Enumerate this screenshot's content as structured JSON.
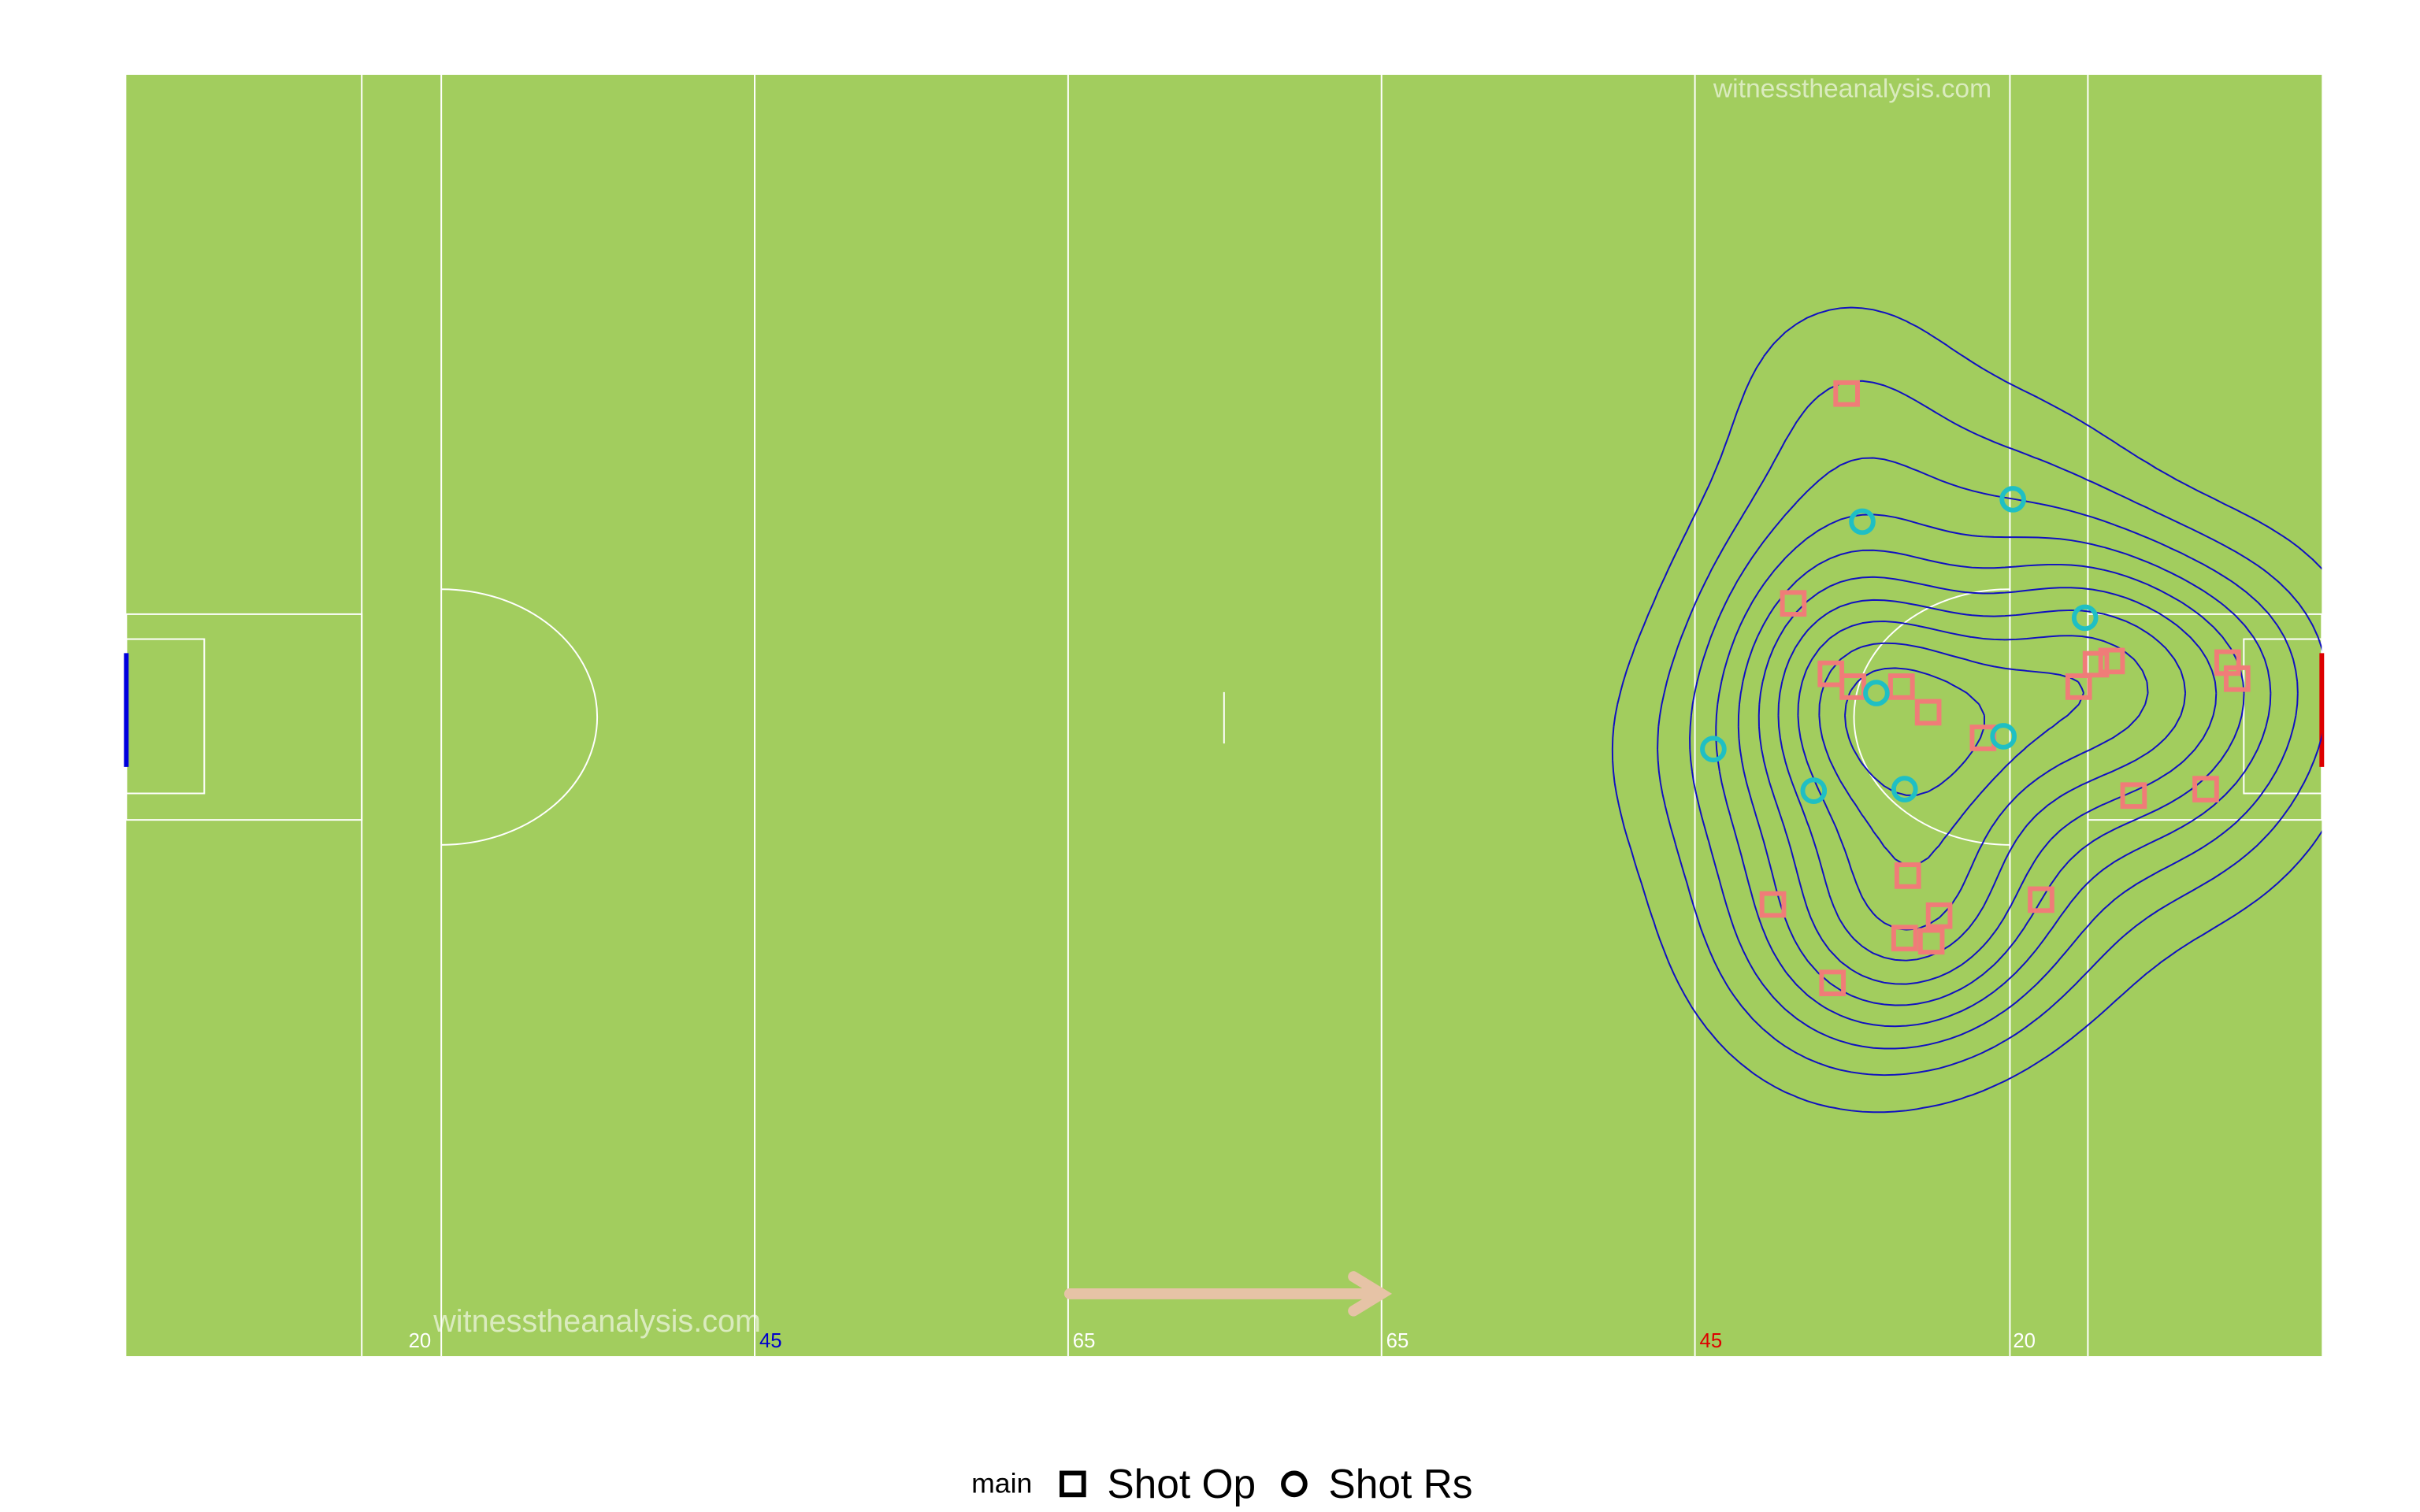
{
  "chart_data": {
    "type": "scatter",
    "legend_title": "main",
    "watermarks": [
      "witnesstheanalysis.com",
      "witnesstheanalysis.com"
    ],
    "line_labels": [
      {
        "text": "20",
        "color": "#ffffff"
      },
      {
        "text": "45",
        "color": "#0000cc"
      },
      {
        "text": "65",
        "color": "#ffffff"
      },
      {
        "text": "65",
        "color": "#ffffff"
      },
      {
        "text": "45",
        "color": "#dd0000"
      },
      {
        "text": "20",
        "color": "#ffffff"
      }
    ],
    "xlim": [
      0,
      140
    ],
    "ylim": [
      0,
      80
    ],
    "contour_color": "#1010c0",
    "series": [
      {
        "name": "Shot Op",
        "shape": "square",
        "color": "#f07c78",
        "x": [
          109.7,
          106.3,
          108.7,
          110.1,
          113.2,
          114.9,
          118.4,
          124.5,
          125.6,
          126.6,
          134.0,
          134.6,
          128.0,
          132.6,
          113.6,
          105.0,
          115.6,
          113.4,
          115.1,
          122.1,
          108.8
        ],
        "values": [
          60.1,
          47.0,
          42.6,
          41.8,
          41.8,
          40.2,
          38.6,
          41.8,
          43.2,
          43.4,
          43.3,
          42.3,
          35.0,
          35.4,
          30.0,
          28.2,
          27.5,
          26.1,
          25.9,
          28.5,
          23.3
        ]
      },
      {
        "name": "Shot Rs",
        "shape": "circle",
        "color": "#1fbfc4",
        "x": [
          110.7,
          120.3,
          124.9,
          111.6,
          119.7,
          101.2,
          107.6,
          113.4
        ],
        "values": [
          52.1,
          53.5,
          46.1,
          41.4,
          38.7,
          37.9,
          35.3,
          35.4
        ]
      }
    ]
  }
}
